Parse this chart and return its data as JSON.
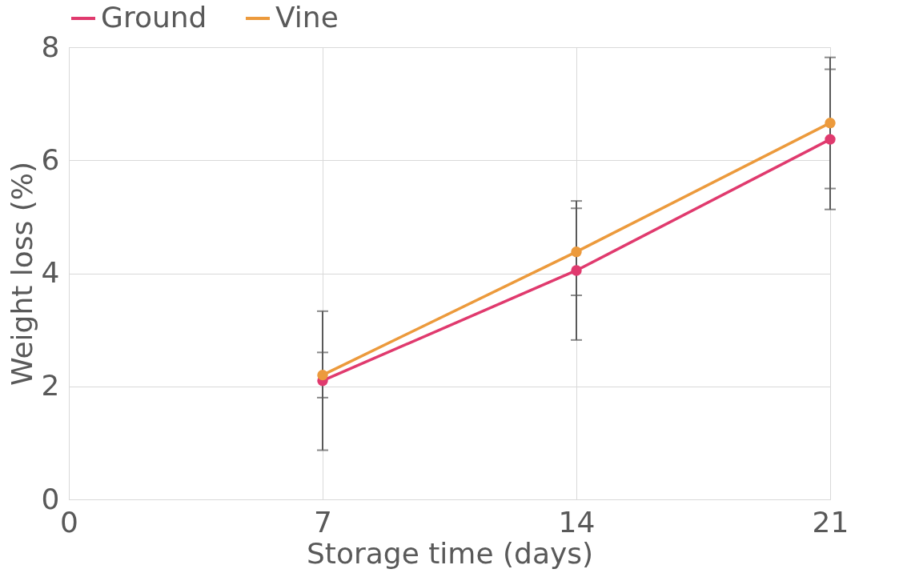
{
  "chart_data": {
    "type": "line",
    "xlabel": "Storage time (days)",
    "ylabel": "Weight loss (%)",
    "x": [
      7,
      14,
      21
    ],
    "series": [
      {
        "name": "Ground",
        "color": "#e03a6e",
        "values": [
          2.1,
          4.05,
          6.37
        ],
        "errors": [
          1.23,
          1.23,
          1.24
        ]
      },
      {
        "name": "Vine",
        "color": "#ec9a3c",
        "values": [
          2.2,
          4.38,
          6.66
        ],
        "errors": [
          0.4,
          0.77,
          1.16
        ]
      }
    ],
    "xlim": [
      0,
      21
    ],
    "xticks": [
      0,
      7,
      14,
      21
    ],
    "ylim": [
      0,
      8
    ],
    "yticks": [
      0,
      2,
      4,
      6,
      8
    ],
    "grid": true,
    "legend": "top",
    "marker": "circle",
    "line_style": "solid"
  }
}
